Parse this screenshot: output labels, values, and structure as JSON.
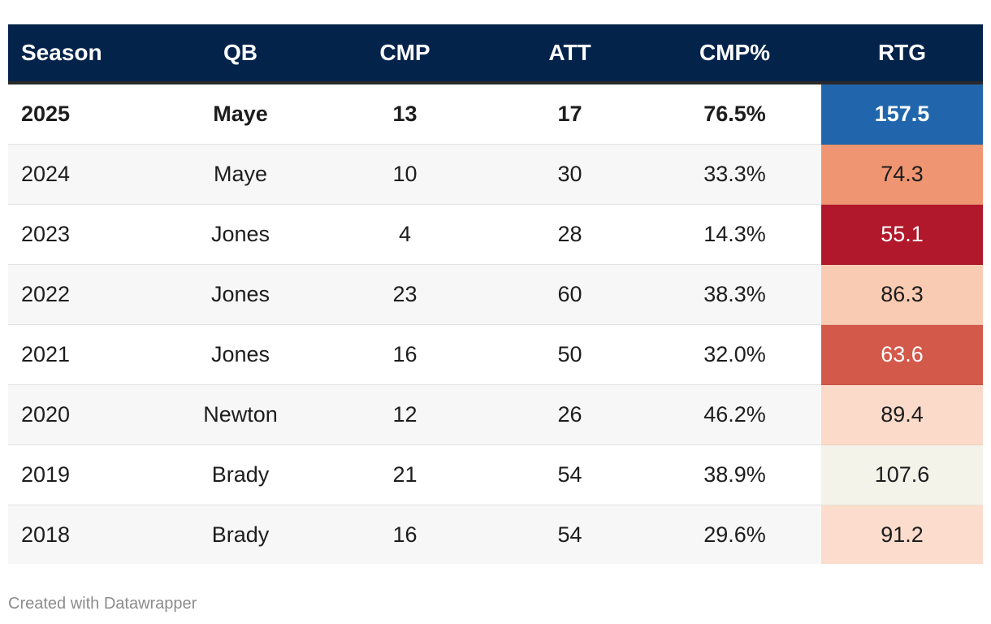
{
  "chart_data": {
    "type": "table",
    "columns": [
      "Season",
      "QB",
      "CMP",
      "ATT",
      "CMP%",
      "RTG"
    ],
    "rows": [
      {
        "season": "2025",
        "qb": "Maye",
        "cmp": "13",
        "att": "17",
        "cmp_pct": "76.5%",
        "rtg": "157.5",
        "rtg_bg": "#2166ac",
        "rtg_fg": "#ffffff",
        "bold": true
      },
      {
        "season": "2024",
        "qb": "Maye",
        "cmp": "10",
        "att": "30",
        "cmp_pct": "33.3%",
        "rtg": "74.3",
        "rtg_bg": "#f09571",
        "rtg_fg": "#1d1d1d",
        "bold": false
      },
      {
        "season": "2023",
        "qb": "Jones",
        "cmp": "4",
        "att": "28",
        "cmp_pct": "14.3%",
        "rtg": "55.1",
        "rtg_bg": "#b2182b",
        "rtg_fg": "#ffffff",
        "bold": false
      },
      {
        "season": "2022",
        "qb": "Jones",
        "cmp": "23",
        "att": "60",
        "cmp_pct": "38.3%",
        "rtg": "86.3",
        "rtg_bg": "#f9cbb2",
        "rtg_fg": "#1d1d1d",
        "bold": false
      },
      {
        "season": "2021",
        "qb": "Jones",
        "cmp": "16",
        "att": "50",
        "cmp_pct": "32.0%",
        "rtg": "63.6",
        "rtg_bg": "#d3594a",
        "rtg_fg": "#ffffff",
        "bold": false
      },
      {
        "season": "2020",
        "qb": "Newton",
        "cmp": "12",
        "att": "26",
        "cmp_pct": "46.2%",
        "rtg": "89.4",
        "rtg_bg": "#fcdaca",
        "rtg_fg": "#1d1d1d",
        "bold": false
      },
      {
        "season": "2019",
        "qb": "Brady",
        "cmp": "21",
        "att": "54",
        "cmp_pct": "38.9%",
        "rtg": "107.6",
        "rtg_bg": "#f3f3e9",
        "rtg_fg": "#1d1d1d",
        "bold": false
      },
      {
        "season": "2018",
        "qb": "Brady",
        "cmp": "16",
        "att": "54",
        "cmp_pct": "29.6%",
        "rtg": "91.2",
        "rtg_bg": "#fcdccc",
        "rtg_fg": "#1d1d1d",
        "bold": false
      }
    ]
  },
  "colors": {
    "header_bg": "#04234a",
    "header_text": "#ffffff"
  },
  "footer": {
    "credit": "Created with Datawrapper"
  }
}
